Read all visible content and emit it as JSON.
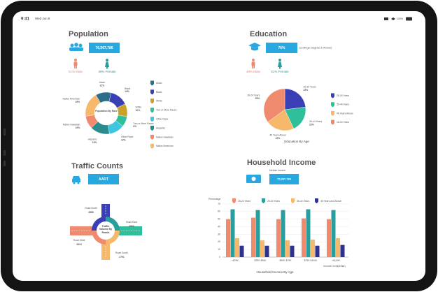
{
  "status_bar": {
    "time": "9:41",
    "date": "Wed Jun 8",
    "battery": "100%"
  },
  "population": {
    "title": "Population",
    "total": "76,567,786",
    "male": "51% Male",
    "female": "49% Female",
    "chart": {
      "type": "donut",
      "center_label": "Population By Race",
      "categories": [
        "Asian",
        "Black",
        "White",
        "Two or More Races",
        "Other Race",
        "Hispanic",
        "Native Hawaiian",
        "Native American"
      ],
      "values": [
        12,
        14,
        10,
        8,
        12,
        15,
        10,
        19
      ],
      "value_labels": [
        "12%",
        "14%",
        "10%",
        "8%",
        "12%",
        "15%",
        "10%",
        "19%"
      ],
      "colors": [
        "#2c6e8a",
        "#3a3fb5",
        "#c9a227",
        "#2fbf9a",
        "#3ec6e0",
        "#2a8c8c",
        "#f08a6e",
        "#f6b86a"
      ]
    }
  },
  "education": {
    "title": "Education",
    "value": "76%",
    "note": "(College Degree & Above)",
    "male": "49% Male",
    "female": "51% Female",
    "chart": {
      "type": "pie",
      "caption": "Education By Age",
      "categories": [
        "25-34 Years",
        "35-44 Years",
        "45 Years Above",
        "18-24 Years"
      ],
      "values": [
        23,
        20,
        22,
        35
      ],
      "value_labels": [
        "23%",
        "20%",
        "22%",
        "35%"
      ],
      "colors": [
        "#3a3fb5",
        "#2fbf9a",
        "#f6b86a",
        "#f08a6e"
      ]
    }
  },
  "traffic": {
    "title": "Traffic Counts",
    "button": "AADT",
    "center_label": "Traffic Volume By Roads",
    "roads": [
      "Road North",
      "Road East",
      "Road South",
      "Road West"
    ],
    "values": [
      2866,
      2903,
      2791,
      2813
    ]
  },
  "household_income": {
    "title": "Household Income",
    "median_label": "Median Income",
    "median": "75,987,786",
    "chart": {
      "type": "bar",
      "y_label": "Percentage",
      "x_label": "Income Level(Dollar)",
      "caption": "Household Income By Age",
      "categories": [
        "<$25K",
        "$25K-$50K",
        "$50K-$75K",
        "$75K-$100K",
        ">$100K"
      ],
      "ylim": [
        0,
        70
      ],
      "yticks": [
        0,
        10,
        20,
        30,
        40,
        50,
        60,
        70
      ],
      "series": [
        {
          "name": "18-24 Years",
          "color": "#f08a6e",
          "values": [
            50,
            52,
            50,
            51,
            50
          ]
        },
        {
          "name": "25-34 Years",
          "color": "#2a9d9d",
          "values": [
            63,
            62,
            62,
            63,
            62
          ]
        },
        {
          "name": "35-44 Years",
          "color": "#f6b86a",
          "values": [
            25,
            22,
            22,
            23,
            25
          ]
        },
        {
          "name": "45 Years and Above",
          "color": "#2e3192",
          "values": [
            15,
            15,
            15,
            15,
            16
          ]
        }
      ]
    }
  }
}
